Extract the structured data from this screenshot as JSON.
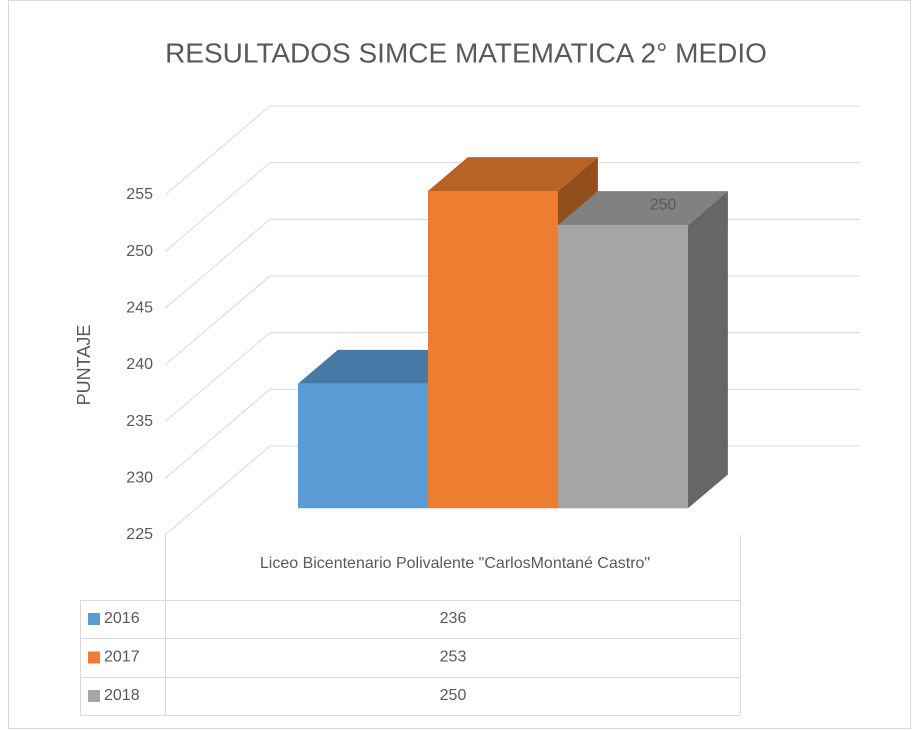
{
  "chart_data": {
    "type": "bar3d",
    "title": "RESULTADOS SIMCE MATEMATICA 2° MEDIO",
    "y_label": "PUNTAJE",
    "categories": [
      "Liceo Bicentenario Polivalente \"CarlosMontané Castro\""
    ],
    "series": [
      {
        "name": "2016",
        "color": "#5b9bd5",
        "values": [
          236
        ]
      },
      {
        "name": "2017",
        "color": "#ed7d31",
        "values": [
          253
        ]
      },
      {
        "name": "2018",
        "color": "#a5a5a5",
        "values": [
          250
        ],
        "show_value_label": true
      }
    ],
    "ylim": [
      225,
      255
    ],
    "yticks": [
      225,
      230,
      235,
      240,
      245,
      250,
      255
    ],
    "grid": true,
    "data_table": true
  }
}
